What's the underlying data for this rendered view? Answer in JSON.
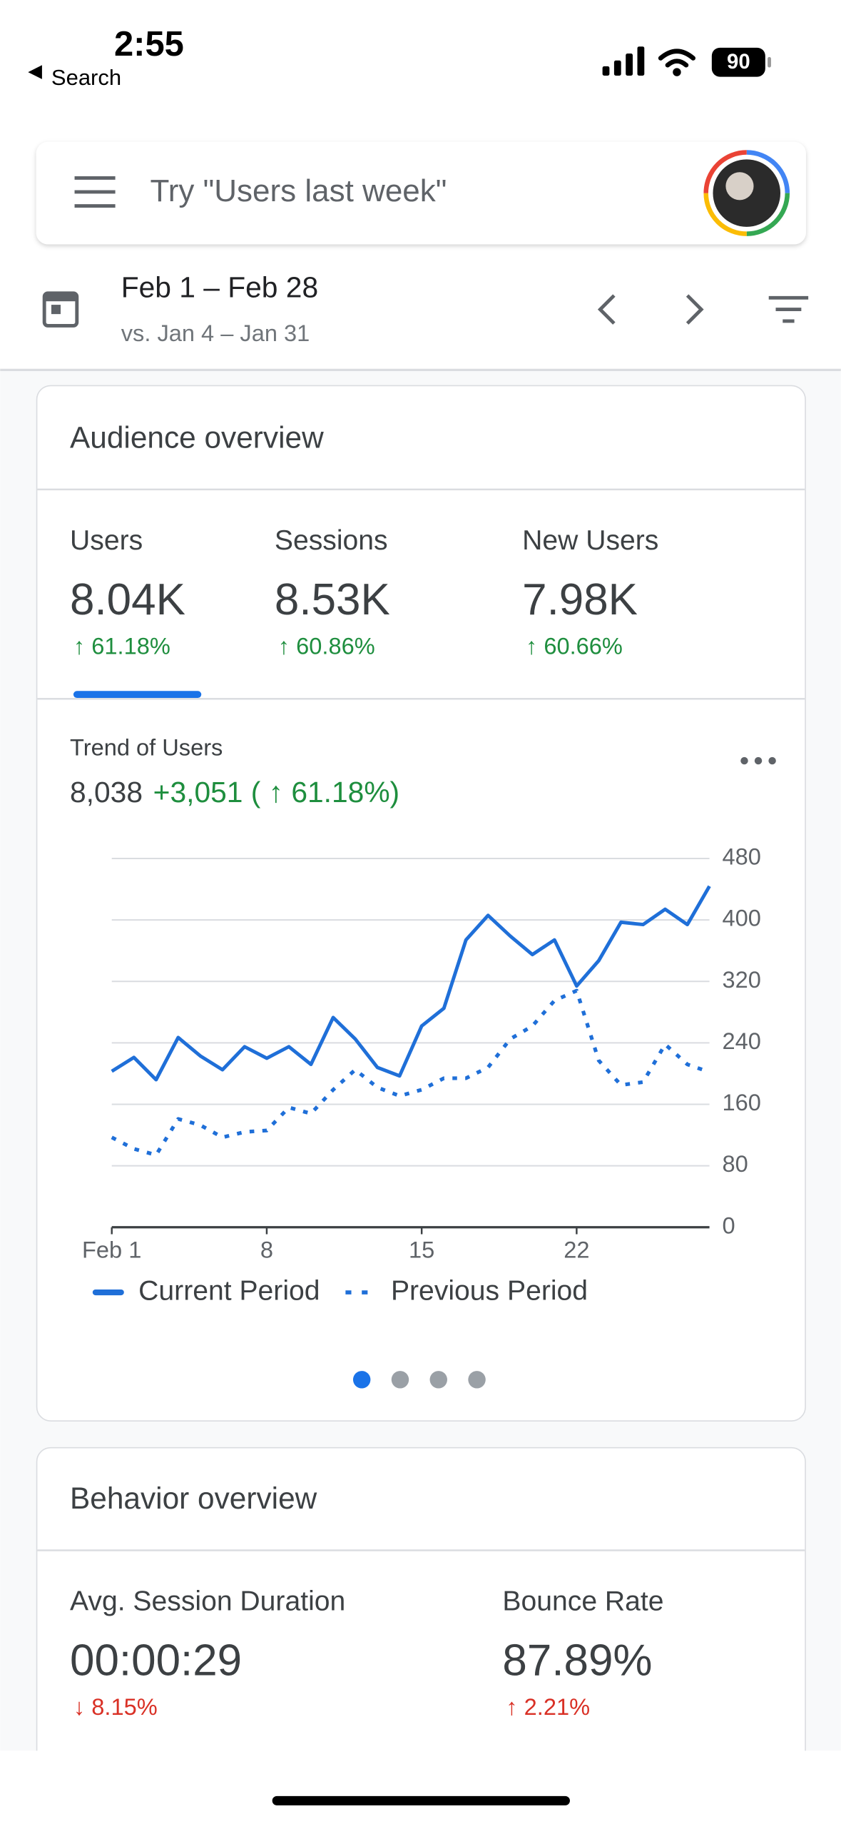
{
  "status_bar": {
    "time": "2:55",
    "back": "Search",
    "battery": "90"
  },
  "search": {
    "placeholder": "Try \"Users last week\""
  },
  "date_range": {
    "range": "Feb 1 – Feb 28",
    "comparison": "vs. Jan 4 – Jan 31"
  },
  "audience": {
    "title": "Audience overview",
    "metrics": [
      {
        "label": "Users",
        "value": "8.04K",
        "change": "↑ 61.18%"
      },
      {
        "label": "Sessions",
        "value": "8.53K",
        "change": "↑ 60.86%"
      },
      {
        "label": "New Users",
        "value": "7.98K",
        "change": "↑ 60.66%"
      }
    ]
  },
  "chart_data": {
    "type": "line",
    "title": "Trend of Users",
    "total": "8,038",
    "delta": "+3,051 ( ↑ 61.18%)",
    "categories": [
      "Feb 1",
      null,
      null,
      null,
      null,
      null,
      null,
      "8",
      null,
      null,
      null,
      null,
      null,
      null,
      "15",
      null,
      null,
      null,
      null,
      null,
      null,
      "22",
      null,
      null,
      null,
      null,
      null,
      null
    ],
    "series": [
      {
        "name": "Current Period",
        "color": "#1f6fd8",
        "line_style": "solid",
        "values": [
          203,
          221,
          192,
          247,
          223,
          205,
          235,
          220,
          235,
          212,
          273,
          245,
          208,
          197,
          262,
          285,
          374,
          406,
          379,
          355,
          374,
          314,
          347,
          397,
          394,
          414,
          394,
          444
        ]
      },
      {
        "name": "Previous Period",
        "color": "#1f6fd8",
        "line_style": "dotted",
        "values": [
          117,
          102,
          94,
          141,
          133,
          117,
          124,
          126,
          156,
          148,
          179,
          205,
          182,
          171,
          179,
          194,
          194,
          208,
          245,
          262,
          295,
          308,
          217,
          185,
          189,
          238,
          212,
          202
        ]
      }
    ],
    "ylim": [
      0,
      480
    ],
    "yticks": [
      0,
      80,
      160,
      240,
      320,
      400,
      480
    ],
    "grid": true,
    "legend": "bottom"
  },
  "behavior": {
    "title": "Behavior overview",
    "metrics": [
      {
        "label": "Avg. Session Duration",
        "value": "00:00:29",
        "change": "↓ 8.15%"
      },
      {
        "label": "Bounce Rate",
        "value": "87.89%",
        "change": "↑ 2.21%"
      }
    ]
  }
}
